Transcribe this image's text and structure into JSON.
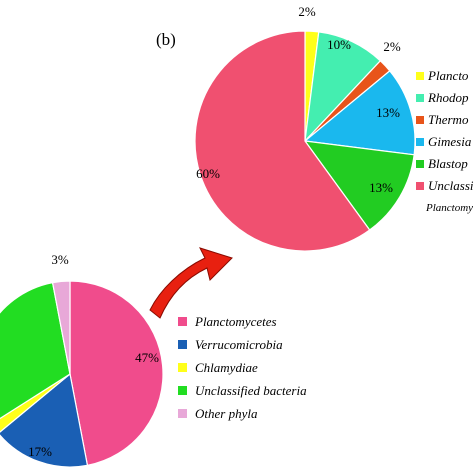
{
  "panel_label": "(b)",
  "colors": {
    "planctomycetes": "#f04c8c",
    "verrucomicrobia": "#1a5fb4",
    "chlamydiae": "#ffff1a",
    "unclassified_bacteria": "#22dd22",
    "other_phyla": "#e8a8d8",
    "rhodop": "#44eeb0",
    "thermo": "#e8541a",
    "gimesia": "#1ab8ee",
    "blastop": "#22cc22",
    "unclass_planct": "#f05070",
    "arrow": "#e82010"
  },
  "chart_data": [
    {
      "type": "pie",
      "slices": [
        {
          "label": "Planctomycetes",
          "value": 47,
          "text": "47%"
        },
        {
          "label": "Verrucomicrobia",
          "value": 17,
          "text": "17%"
        },
        {
          "label": "Chlamydiae",
          "value": 2,
          "text": ""
        },
        {
          "label": "Unclassified bacteria",
          "value": 31,
          "text": ""
        },
        {
          "label": "Other phyla",
          "value": 3,
          "text": "3%"
        }
      ],
      "legend": [
        "Planctomycetes",
        "Verrucomicrobia",
        "Chlamydiae",
        "Unclassified bacteria",
        "Other phyla"
      ],
      "legend_placement": "right"
    },
    {
      "type": "pie",
      "slices": [
        {
          "label": "Plancto",
          "value": 2,
          "text": "2%"
        },
        {
          "label": "Rhodop",
          "value": 10,
          "text": "10%"
        },
        {
          "label": "Thermo",
          "value": 2,
          "text": "2%"
        },
        {
          "label": "Gimesia",
          "value": 13,
          "text": "13%"
        },
        {
          "label": "Blastop",
          "value": 13,
          "text": "13%"
        },
        {
          "label": "Unclassified Planctomycetes",
          "value": 60,
          "text": "60%"
        }
      ],
      "legend": [
        "Plancto",
        "Rhodop",
        "Thermo",
        "Gimesia",
        "Blastop",
        "Unclassi"
      ],
      "legend_extra": "Planctomy",
      "legend_placement": "right"
    }
  ]
}
